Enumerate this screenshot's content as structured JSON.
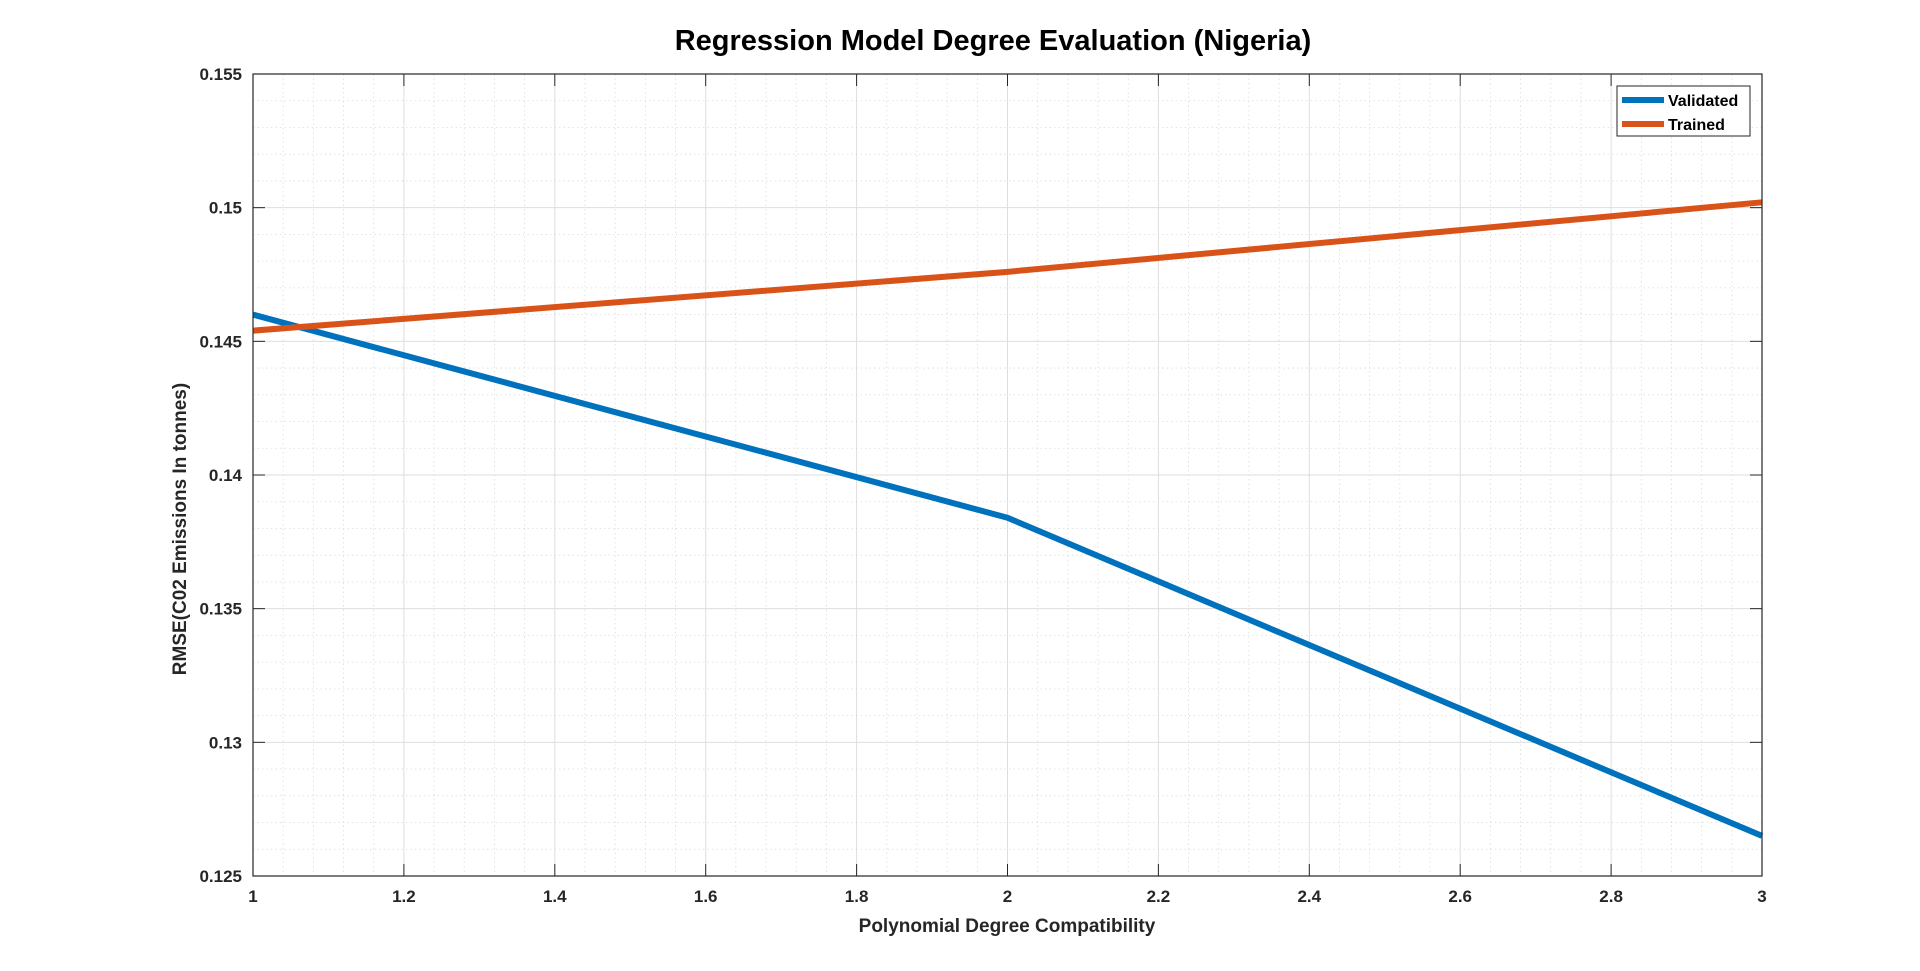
{
  "chart_data": {
    "type": "line",
    "title": "Regression Model Degree Evaluation (Nigeria)",
    "xlabel": "Polynomial Degree Compatibility",
    "ylabel": "RMSE(C02 Emissions In tonnes)",
    "xlim": [
      1,
      3
    ],
    "ylim": [
      0.125,
      0.155
    ],
    "xticks": [
      1,
      1.2,
      1.4,
      1.6,
      1.8,
      2,
      2.2,
      2.4,
      2.6,
      2.8,
      3
    ],
    "xtick_labels": [
      "1",
      "1.2",
      "1.4",
      "1.6",
      "1.8",
      "2",
      "2.2",
      "2.4",
      "2.6",
      "2.8",
      "3"
    ],
    "yticks": [
      0.125,
      0.13,
      0.135,
      0.14,
      0.145,
      0.15,
      0.155
    ],
    "ytick_labels": [
      "0.125",
      "0.13",
      "0.135",
      "0.14",
      "0.145",
      "0.15",
      "0.155"
    ],
    "grid": true,
    "minor_grid": true,
    "legend_position": "top-right",
    "x": [
      1,
      2,
      3
    ],
    "series": [
      {
        "name": "Validated",
        "values": [
          0.146,
          0.1384,
          0.1265
        ],
        "color": "#0072BD"
      },
      {
        "name": "Trained",
        "values": [
          0.1454,
          0.1476,
          0.1502
        ],
        "color": "#D95319"
      }
    ]
  }
}
